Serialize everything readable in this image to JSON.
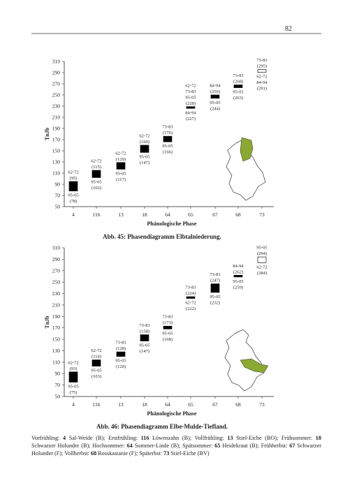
{
  "page_number": "82",
  "chart_data": [
    {
      "type": "phase",
      "title": "Abb. 45: Phasendiagramm Elbtalniederung.",
      "x_label": "Phänologische Phase",
      "y_label": "TnJb",
      "ylim": [
        50,
        310
      ],
      "yticks": [
        50,
        70,
        90,
        110,
        130,
        150,
        170,
        190,
        210,
        230,
        250,
        270,
        290,
        310
      ],
      "map_region": "north-east",
      "phases": [
        {
          "category": "4",
          "fill": "#000",
          "above": [
            {
              "period": "62-72",
              "value": 95,
              "value_label": "(95)"
            }
          ],
          "below": [
            {
              "period": "95-05",
              "value": 78,
              "value_label": "(78)"
            }
          ]
        },
        {
          "category": "116",
          "fill": "#000",
          "above": [
            {
              "period": "62-72",
              "value": 115,
              "value_label": "(115)"
            }
          ],
          "below": [
            {
              "period": "95-05",
              "value": 102,
              "value_label": "(102)"
            }
          ]
        },
        {
          "category": "13",
          "fill": "#000",
          "above": [
            {
              "period": "62-72",
              "value": 129,
              "value_label": "(129)"
            }
          ],
          "below": [
            {
              "period": "95-05",
              "value": 117,
              "value_label": "(117)"
            }
          ]
        },
        {
          "category": "18",
          "fill": "#000",
          "above": [
            {
              "period": "62-72",
              "value": 160,
              "value_label": "(160)"
            }
          ],
          "below": [
            {
              "period": "95-05",
              "value": 147,
              "value_label": "(147)"
            }
          ]
        },
        {
          "category": "64",
          "fill": "#000",
          "above": [
            {
              "period": "73-83",
              "value": 176,
              "value_label": "(176)"
            }
          ],
          "below": [
            {
              "period": "95-05",
              "value": 166,
              "value_label": "(166)"
            }
          ]
        },
        {
          "category": "65",
          "fill": "#000",
          "above": [
            {
              "period": "62-72"
            },
            {
              "period": "73-83"
            },
            {
              "period": "95-05",
              "value": 228,
              "value_label": "(228)"
            }
          ],
          "below": [
            {
              "period": "84-94",
              "value": 227,
              "value_label": "(227)"
            }
          ]
        },
        {
          "category": "67",
          "fill": "#000",
          "above": [
            {
              "period": "84-94",
              "value": 250,
              "value_label": "(250)"
            }
          ],
          "below": [
            {
              "period": "95-05",
              "value": 244,
              "value_label": "(244)"
            }
          ]
        },
        {
          "category": "68",
          "fill": "#000",
          "above": [
            {
              "period": "73-83",
              "value": 268,
              "value_label": "(268)"
            }
          ],
          "below": [
            {
              "period": "95-05",
              "value": 263,
              "value_label": "(263)"
            }
          ]
        },
        {
          "category": "73",
          "fill": "#fff",
          "above": [
            {
              "period": "73-83",
              "value": 295,
              "value_label": "(295)"
            }
          ],
          "below": [
            {
              "period": "62-72"
            },
            {
              "period": "84-94",
              "value": 291,
              "value_label": "(291)"
            }
          ]
        }
      ]
    },
    {
      "type": "phase",
      "title": "Abb. 46: Phasendiagramm Elbe-Mulde-Tiefland.",
      "x_label": "Phänologische Phase",
      "y_label": "TnJb",
      "ylim": [
        50,
        310
      ],
      "yticks": [
        50,
        70,
        90,
        110,
        130,
        150,
        170,
        190,
        210,
        230,
        250,
        270,
        290,
        310
      ],
      "map_region": "east",
      "phases": [
        {
          "category": "4",
          "fill": "#000",
          "above": [
            {
              "period": "62-72",
              "value": 93,
              "value_label": "(93)"
            }
          ],
          "below": [
            {
              "period": "95-05",
              "value": 75,
              "value_label": "(75)"
            }
          ]
        },
        {
          "category": "116",
          "fill": "#000",
          "above": [
            {
              "period": "62-72",
              "value": 114,
              "value_label": "(114)"
            }
          ],
          "below": [
            {
              "period": "95-05",
              "value": 103,
              "value_label": "(103)"
            }
          ]
        },
        {
          "category": "13",
          "fill": "#000",
          "above": [
            {
              "period": "73-83",
              "value": 128,
              "value_label": "(128)"
            }
          ],
          "below": [
            {
              "period": "95-05",
              "value": 120,
              "value_label": "(120)"
            }
          ]
        },
        {
          "category": "18",
          "fill": "#000",
          "above": [
            {
              "period": "73-83",
              "value": 158,
              "value_label": "(158)"
            }
          ],
          "below": [
            {
              "period": "95-05",
              "value": 147,
              "value_label": "(147)"
            }
          ]
        },
        {
          "category": "64",
          "fill": "#000",
          "above": [
            {
              "period": "73-83",
              "value": 173,
              "value_label": "(173)"
            }
          ],
          "below": [
            {
              "period": "95-05",
              "value": 168,
              "value_label": "(168)"
            }
          ]
        },
        {
          "category": "65",
          "fill": "#000",
          "above": [
            {
              "period": "73-83",
              "value": 224,
              "value_label": "(224)"
            }
          ],
          "below": [
            {
              "period": "62-72",
              "value": 222,
              "value_label": "(222)"
            }
          ]
        },
        {
          "category": "67",
          "fill": "#000",
          "above": [
            {
              "period": "73-83",
              "value": 247,
              "value_label": "(247)"
            }
          ],
          "below": [
            {
              "period": "95-05",
              "value": 232,
              "value_label": "(232)"
            }
          ]
        },
        {
          "category": "68",
          "fill": "#000",
          "above": [
            {
              "period": "84-94",
              "value": 262,
              "value_label": "(262)"
            }
          ],
          "below": [
            {
              "period": "95-05",
              "value": 259,
              "value_label": "(259)"
            }
          ]
        },
        {
          "category": "73",
          "fill": "#fff",
          "above": [
            {
              "period": "95-05",
              "value": 294,
              "value_label": "(294)"
            }
          ],
          "below": [
            {
              "period": "62-72",
              "value": 284,
              "value_label": "(284)"
            }
          ]
        }
      ]
    }
  ],
  "legend": [
    {
      "text": "Vorfrühling: ",
      "bold": false
    },
    {
      "text": "4",
      "bold": true
    },
    {
      "text": " Sal-Weide (B); Erstfrühling: ",
      "bold": false
    },
    {
      "text": "116",
      "bold": true
    },
    {
      "text": " Löwenzahn (B); Vollfrühling: ",
      "bold": false
    },
    {
      "text": "13",
      "bold": true
    },
    {
      "text": " Stiel-Eiche (BO); Frühsommer: ",
      "bold": false
    },
    {
      "text": "18",
      "bold": true
    },
    {
      "text": " Schwarzer Holunder (B); Hochsommer: ",
      "bold": false
    },
    {
      "text": "64",
      "bold": true
    },
    {
      "text": " Sommer-Linde (B); Spätsommer: ",
      "bold": false
    },
    {
      "text": "65",
      "bold": true
    },
    {
      "text": " Heidekraut (B); Frühherbst: ",
      "bold": false
    },
    {
      "text": "67",
      "bold": true
    },
    {
      "text": " Schwarzer Holunder (F); Vollherbst: ",
      "bold": false
    },
    {
      "text": "68",
      "bold": true
    },
    {
      "text": " Rosskastanie (F); Späterbst: ",
      "bold": false
    },
    {
      "text": "73",
      "bold": true
    },
    {
      "text": " Stiel-Eiche (BV)",
      "bold": false
    }
  ]
}
